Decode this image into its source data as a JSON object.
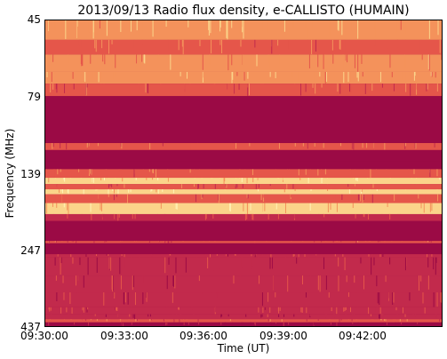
{
  "chart_data": {
    "type": "heatmap",
    "title": "2013/09/13  Radio flux density, e-CALLISTO (HUMAIN)",
    "xlabel": "Time (UT)",
    "ylabel": "Frequency (MHz)",
    "x_ticks": [
      "09:30:00",
      "09:33:00",
      "09:36:00",
      "09:39:00",
      "09:42:00"
    ],
    "y_ticks": [
      "45",
      "79",
      "139",
      "247",
      "437"
    ],
    "xlim": [
      "09:30:00",
      "09:45:00"
    ],
    "ylim": [
      437,
      45
    ],
    "colormap": [
      "#9b0a45",
      "#c22a4c",
      "#e5564a",
      "#f4925b",
      "#fbd48a",
      "#fff3b5",
      "#8fd2c0"
    ],
    "bands": [
      {
        "f_from": 45,
        "f_to": 52,
        "level": 0.75
      },
      {
        "f_from": 52,
        "f_to": 58,
        "level": 0.55
      },
      {
        "f_from": 58,
        "f_to": 66,
        "level": 0.6
      },
      {
        "f_from": 66,
        "f_to": 72,
        "level": 0.7
      },
      {
        "f_from": 72,
        "f_to": 79,
        "level": 0.45
      },
      {
        "f_from": 79,
        "f_to": 112,
        "level": 0.0
      },
      {
        "f_from": 112,
        "f_to": 118,
        "level": 0.5
      },
      {
        "f_from": 118,
        "f_to": 128,
        "level": 0.05
      },
      {
        "f_from": 128,
        "f_to": 136,
        "level": 0.0
      },
      {
        "f_from": 136,
        "f_to": 145,
        "level": 0.55
      },
      {
        "f_from": 145,
        "f_to": 152,
        "level": 0.85
      },
      {
        "f_from": 152,
        "f_to": 158,
        "level": 0.4
      },
      {
        "f_from": 158,
        "f_to": 164,
        "level": 0.9
      },
      {
        "f_from": 164,
        "f_to": 175,
        "level": 0.5
      },
      {
        "f_from": 175,
        "f_to": 190,
        "level": 0.8
      },
      {
        "f_from": 190,
        "f_to": 200,
        "level": 0.35
      },
      {
        "f_from": 200,
        "f_to": 232,
        "level": 0.02
      },
      {
        "f_from": 232,
        "f_to": 236,
        "level": 0.4
      },
      {
        "f_from": 236,
        "f_to": 256,
        "level": 0.03
      },
      {
        "f_from": 256,
        "f_to": 262,
        "level": 0.3
      },
      {
        "f_from": 262,
        "f_to": 300,
        "level": 0.25
      },
      {
        "f_from": 300,
        "f_to": 340,
        "level": 0.3
      },
      {
        "f_from": 340,
        "f_to": 380,
        "level": 0.25
      },
      {
        "f_from": 380,
        "f_to": 400,
        "level": 0.35
      },
      {
        "f_from": 400,
        "f_to": 415,
        "level": 0.2
      },
      {
        "f_from": 415,
        "f_to": 425,
        "level": 0.45
      },
      {
        "f_from": 425,
        "f_to": 437,
        "level": 0.15
      }
    ]
  }
}
